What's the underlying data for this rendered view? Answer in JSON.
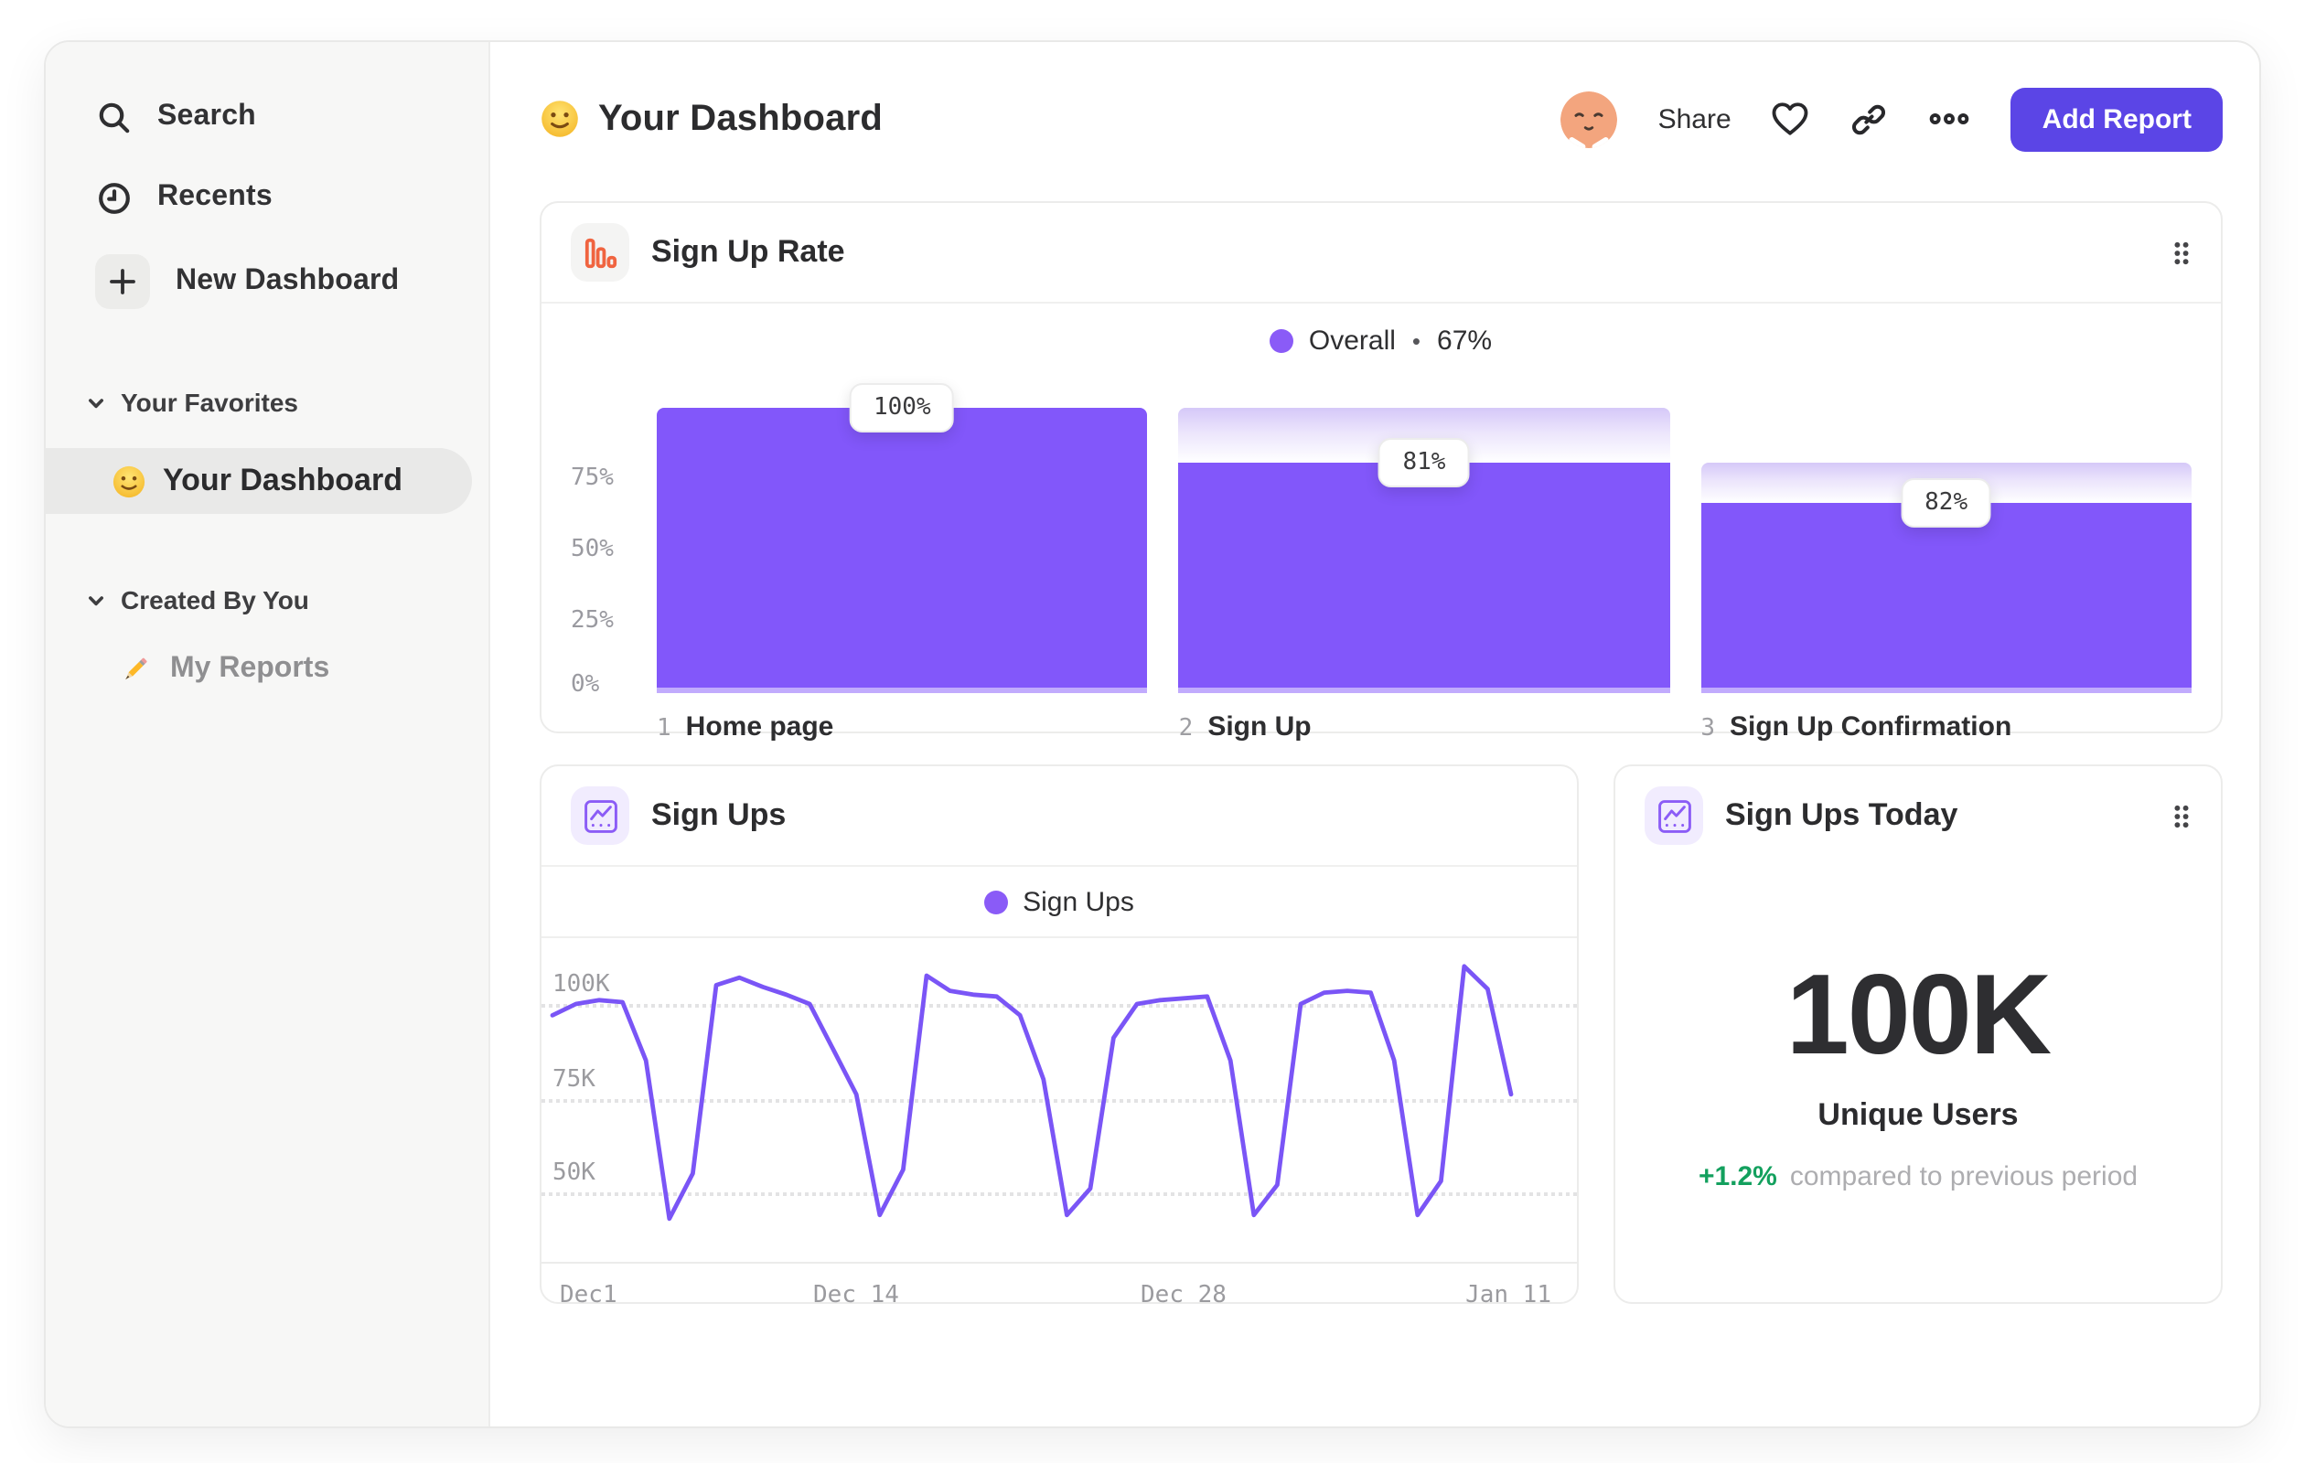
{
  "sidebar": {
    "search": "Search",
    "recents": "Recents",
    "new_dashboard": "New Dashboard",
    "favorites_header": "Your Favorites",
    "favorite_item": "Your Dashboard",
    "created_header": "Created By You",
    "reports_item": "My Reports"
  },
  "header": {
    "title": "Your Dashboard",
    "share": "Share",
    "add_report": "Add Report"
  },
  "cards": {
    "funnel": {
      "title": "Sign Up Rate",
      "legend_sep": "•"
    },
    "line": {
      "title": "Sign Ups"
    },
    "kpi": {
      "title": "Sign Ups Today",
      "value": "100K",
      "label": "Unique Users",
      "delta": "+1.2%",
      "caption": "compared to previous period"
    }
  },
  "colors": {
    "accent_purple": "#8257fa",
    "legend_purple": "#8a5bf7",
    "button_indigo": "#5b45e6",
    "icon_orange": "#f06440",
    "positive_green": "#13a05e",
    "avatar_peach": "#f3a57e"
  },
  "chart_data": [
    {
      "type": "bar",
      "subtype": "funnel",
      "title": "Sign Up Rate",
      "legend": {
        "label": "Overall",
        "value": "67%"
      },
      "y_ticks": [
        "75%",
        "50%",
        "25%",
        "0%"
      ],
      "ylim": [
        0,
        100
      ],
      "steps": [
        {
          "num": "1",
          "label": "Home page",
          "rate": 100,
          "display": "100%"
        },
        {
          "num": "2",
          "label": "Sign Up",
          "rate": 81,
          "display": "81%"
        },
        {
          "num": "3",
          "label": "Sign Up Confirmation",
          "rate": 82,
          "display": "82%"
        }
      ],
      "overall_conversion_pct": 67
    },
    {
      "type": "line",
      "title": "Sign Ups",
      "legend": "Sign Ups",
      "y_ticks": [
        "100K",
        "75K",
        "50K"
      ],
      "x_ticks": [
        "Dec1",
        "Dec 14",
        "Dec 28",
        "Jan 11"
      ],
      "ylabel_unit": "K",
      "ylim_gridlines": [
        100,
        75,
        50
      ],
      "values": [
        97,
        100,
        101,
        100.5,
        85,
        43,
        55,
        105,
        107,
        104.5,
        102.5,
        100,
        88,
        76,
        44,
        56,
        107.5,
        103.5,
        102.5,
        102,
        97,
        80,
        44,
        51,
        91,
        100,
        101,
        101.5,
        102,
        85,
        44,
        52,
        100,
        103,
        103.5,
        103,
        85,
        44,
        53,
        110,
        104,
        76
      ]
    },
    {
      "type": "kpi",
      "title": "Sign Ups Today",
      "value": "100K",
      "label": "Unique Users",
      "delta_pct": "+1.2%",
      "comparison": "compared to previous period"
    }
  ]
}
